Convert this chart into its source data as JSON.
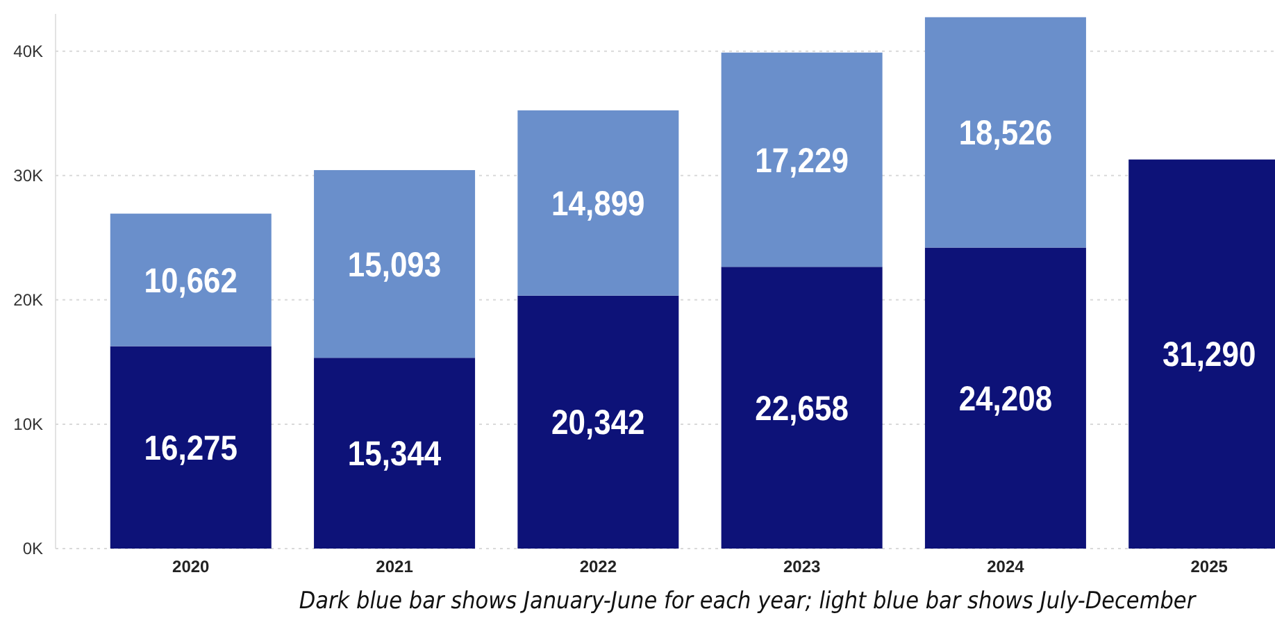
{
  "chart_data": {
    "type": "bar",
    "stacked": true,
    "categories": [
      "2020",
      "2021",
      "2022",
      "2023",
      "2024",
      "2025"
    ],
    "series": [
      {
        "color": "#0d1278",
        "values": [
          16275,
          15344,
          20342,
          22658,
          24208,
          31290
        ],
        "value_labels": [
          "16,275",
          "15,344",
          "20,342",
          "22,658",
          "24,208",
          "31,290"
        ]
      },
      {
        "color": "#6a8fcb",
        "values": [
          10662,
          15093,
          14899,
          17229,
          18526,
          null
        ],
        "value_labels": [
          "10,662",
          "15,093",
          "14,899",
          "17,229",
          "18,526",
          null
        ]
      }
    ],
    "ylim": [
      0,
      43000
    ],
    "yticks": [
      {
        "value": 0,
        "label": "0K"
      },
      {
        "value": 10000,
        "label": "10K"
      },
      {
        "value": 20000,
        "label": "20K"
      },
      {
        "value": 30000,
        "label": "30K"
      },
      {
        "value": 40000,
        "label": "40K"
      }
    ],
    "grid": "y",
    "annotations": [
      "Dark blue bar shows January-June for each year; light blue bar shows July-December"
    ]
  }
}
